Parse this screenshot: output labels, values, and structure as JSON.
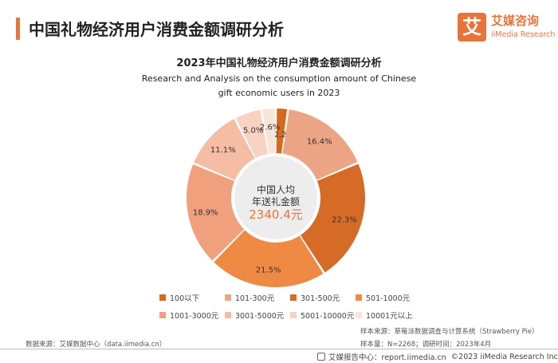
{
  "header": {
    "title": "中国礼物经济用户消费金额调研分析",
    "accent_color": "#e8743b"
  },
  "logo": {
    "mark": "艾",
    "name_cn": "艾媒咨询",
    "name_en": "iiMedia Research"
  },
  "chart_data": {
    "type": "pie",
    "variant": "donut",
    "title": "2023年中国礼物经济用户消费金额调研分析",
    "subtitle_lines": [
      "Research and Analysis on the consumption amount of Chinese",
      "gift economic users in 2023"
    ],
    "center_text": {
      "line1": "中国人均",
      "line2": "年送礼金额",
      "value": "2340.4元"
    },
    "slices": [
      {
        "label": "100以下",
        "value": 2.2,
        "display": "2.2%",
        "color": "#d4691f"
      },
      {
        "label": "101-300元",
        "value": 16.4,
        "display": "16.4%",
        "color": "#eca584"
      },
      {
        "label": "301-500元",
        "value": 22.3,
        "display": "22.3%",
        "color": "#d66b28"
      },
      {
        "label": "501-1000元",
        "value": 21.5,
        "display": "21.5%",
        "color": "#ef8a45"
      },
      {
        "label": "1001-3000元",
        "value": 18.9,
        "display": "18.9%",
        "color": "#f1a07e"
      },
      {
        "label": "3001-5000元",
        "value": 11.1,
        "display": "11.1%",
        "color": "#f5bda4"
      },
      {
        "label": "5001-10000元",
        "value": 5.0,
        "display": "5.0%",
        "color": "#f8d2c2"
      },
      {
        "label": "10001元以上",
        "value": 2.6,
        "display": "2.6%",
        "color": "#fae3d8"
      }
    ],
    "legend_position": "bottom"
  },
  "notes": {
    "sample_source": "样本来源：草莓派数据调查与计算系统（Strawberry Pie）",
    "sample_size": "样本量：N=2268；调研时间：2023年4月",
    "data_source": "数据来源：艾媒数据中心（data.iimedia.cn）"
  },
  "footer": {
    "report": "艾媒报告中心：report.iimedia.cn",
    "copyright": "©2023  iiMedia Research  Inc"
  }
}
